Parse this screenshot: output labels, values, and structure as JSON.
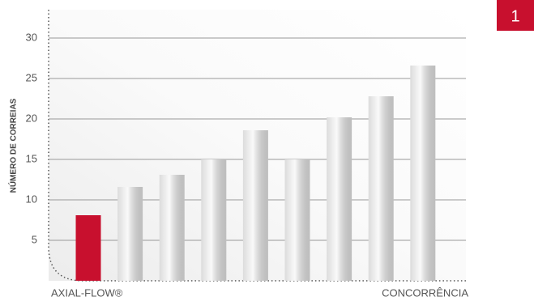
{
  "badge": "1",
  "chart_data": {
    "type": "bar",
    "y_label": "NÚMERO DE CORREIAS",
    "categories": [
      "AXIAL-FLOW®",
      null,
      null,
      null,
      null,
      null,
      null,
      null,
      "CONCORRÊNCIA"
    ],
    "values": [
      8.1,
      11.6,
      13.1,
      15,
      18.6,
      15,
      20.2,
      22.8,
      26.6
    ],
    "colors": [
      "#c8102e",
      "#dcdcdc",
      "#dcdcdc",
      "#dcdcdc",
      "#dcdcdc",
      "#dcdcdc",
      "#dcdcdc",
      "#dcdcdc",
      "#dcdcdc"
    ],
    "ylim": [
      0,
      33.5
    ],
    "yticks": [
      5,
      10,
      15,
      20,
      25,
      30
    ],
    "grid": true
  }
}
